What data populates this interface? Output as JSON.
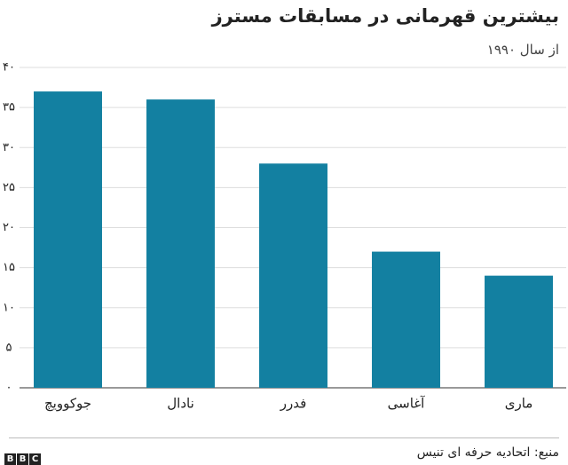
{
  "chart_data": {
    "type": "bar",
    "title": "بیشترین قهرمانی در مسابقات مسترز",
    "subtitle": "از سال ۱۹۹۰",
    "categories": [
      "جوکوویچ",
      "نادال",
      "فدرر",
      "آغاسی",
      "ماری"
    ],
    "values": [
      37,
      36,
      28,
      17,
      14
    ],
    "color": "#1380a1",
    "ylim": [
      0,
      40
    ],
    "yticks": [
      {
        "value": 0,
        "label": "۰"
      },
      {
        "value": 5,
        "label": "۵"
      },
      {
        "value": 10,
        "label": "۱۰"
      },
      {
        "value": 15,
        "label": "۱۵"
      },
      {
        "value": 20,
        "label": "۲۰"
      },
      {
        "value": 25,
        "label": "۲۵"
      },
      {
        "value": 30,
        "label": "۳۰"
      },
      {
        "value": 35,
        "label": "۳۵"
      },
      {
        "value": 40,
        "label": "۴۰"
      }
    ],
    "grid": true,
    "source": "منبع: اتحادیه حرفه ای تنیس",
    "logo": "BBC"
  }
}
